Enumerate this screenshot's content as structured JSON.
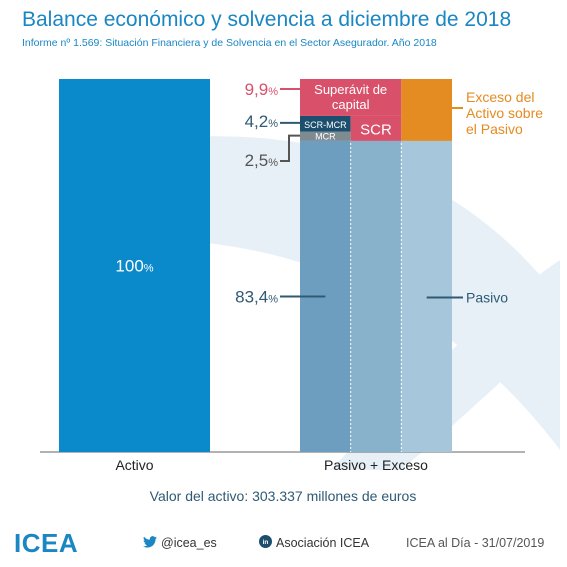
{
  "title": "Balance económico y solvencia a diciembre de 2018",
  "subtitle": "Informe nº 1.569: Situación Financiera y de Solvencia en el Sector Asegurador. Año 2018",
  "colors": {
    "activo": "#0b8acb",
    "pasivo_dark": "#6d9ebf",
    "pasivo_mid": "#88b2cc",
    "pasivo_light": "#a6c7db",
    "superavit": "#d9506b",
    "scr": "#d9506b",
    "scr_mcr": "#1c4f6e",
    "mcr": "#7e8b91",
    "exceso": "#e48b21",
    "label_dark": "#2f5a74"
  },
  "chart_data": {
    "type": "bar",
    "categories": [
      "Activo",
      "Pasivo + Exceso"
    ],
    "value_note": "Valor del activo: 303.337 millones de euros",
    "activo": {
      "value": 100,
      "label": "100",
      "unit": "%"
    },
    "stack": [
      {
        "name": "Pasivo",
        "value": 83.4,
        "label": "83,4",
        "unit": "%"
      },
      {
        "name": "MCR",
        "value": 2.5,
        "label": "2,5",
        "unit": "%"
      },
      {
        "name": "SCR-MCR",
        "value": 4.2,
        "label": "4,2",
        "unit": "%"
      },
      {
        "name": "Superávit de capital",
        "value": 9.9,
        "label": "9,9",
        "unit": "%"
      }
    ],
    "inner_labels": {
      "superavit": "Superávit de capital",
      "scr_mcr": "SCR-MCR",
      "scr": "SCR",
      "mcr": "MCR"
    },
    "side_labels": {
      "exceso": "Exceso del Activo sobre el Pasivo",
      "pasivo": "Pasivo"
    }
  },
  "footer": {
    "logo": "ICEA",
    "twitter": "@icea_es",
    "linkedin": "Asociación ICEA",
    "date": "ICEA al Día - 31/07/2019"
  }
}
